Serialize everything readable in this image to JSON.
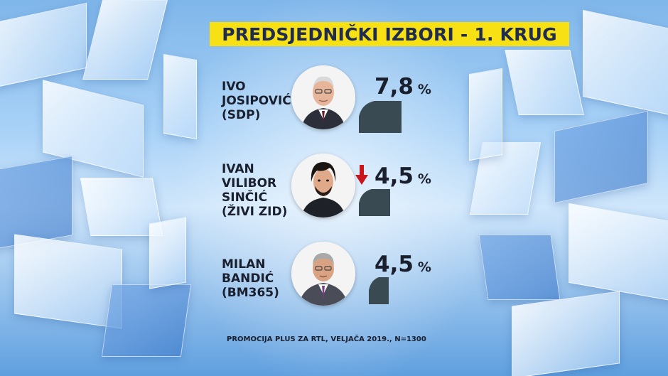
{
  "title": "PREDSJEDNIČKI IZBORI - 1. KRUG",
  "source": "PROMOCIJA PLUS ZA RTL, VELJAČA 2019., N=1300",
  "colors": {
    "title_bg": "#f7e114",
    "title_text": "#1f2c4f",
    "bar": "#3a4a52",
    "arrow_down": "#c8161d",
    "text": "#1a1f2e"
  },
  "chart_data": {
    "type": "bar",
    "unit": "%",
    "categories": [
      "IVO JOSIPOVIĆ (SDP)",
      "IVAN VILIBOR SINČIĆ (ŽIVI ZID)",
      "MILAN BANDIĆ (BM365)"
    ],
    "values": [
      7.8,
      4.5,
      4.5
    ],
    "title": "PREDSJEDNIČKI IZBORI - 1. KRUG",
    "candidates": [
      {
        "name_lines": [
          "IVO",
          "JOSIPOVIĆ",
          "(SDP)"
        ],
        "value": 7.8,
        "value_label": "7,8",
        "pct": "%",
        "trend": "none",
        "photo_icon": "portrait-icon"
      },
      {
        "name_lines": [
          "IVAN",
          "VILIBOR",
          "SINČIĆ",
          "(ŽIVI ZID)"
        ],
        "value": 4.5,
        "value_label": "4,5",
        "pct": "%",
        "trend": "down",
        "photo_icon": "portrait-icon"
      },
      {
        "name_lines": [
          "MILAN",
          "BANDIĆ",
          "(BM365)"
        ],
        "value": 4.5,
        "value_label": "4,5",
        "pct": "%",
        "trend": "none",
        "photo_icon": "portrait-icon"
      }
    ]
  }
}
